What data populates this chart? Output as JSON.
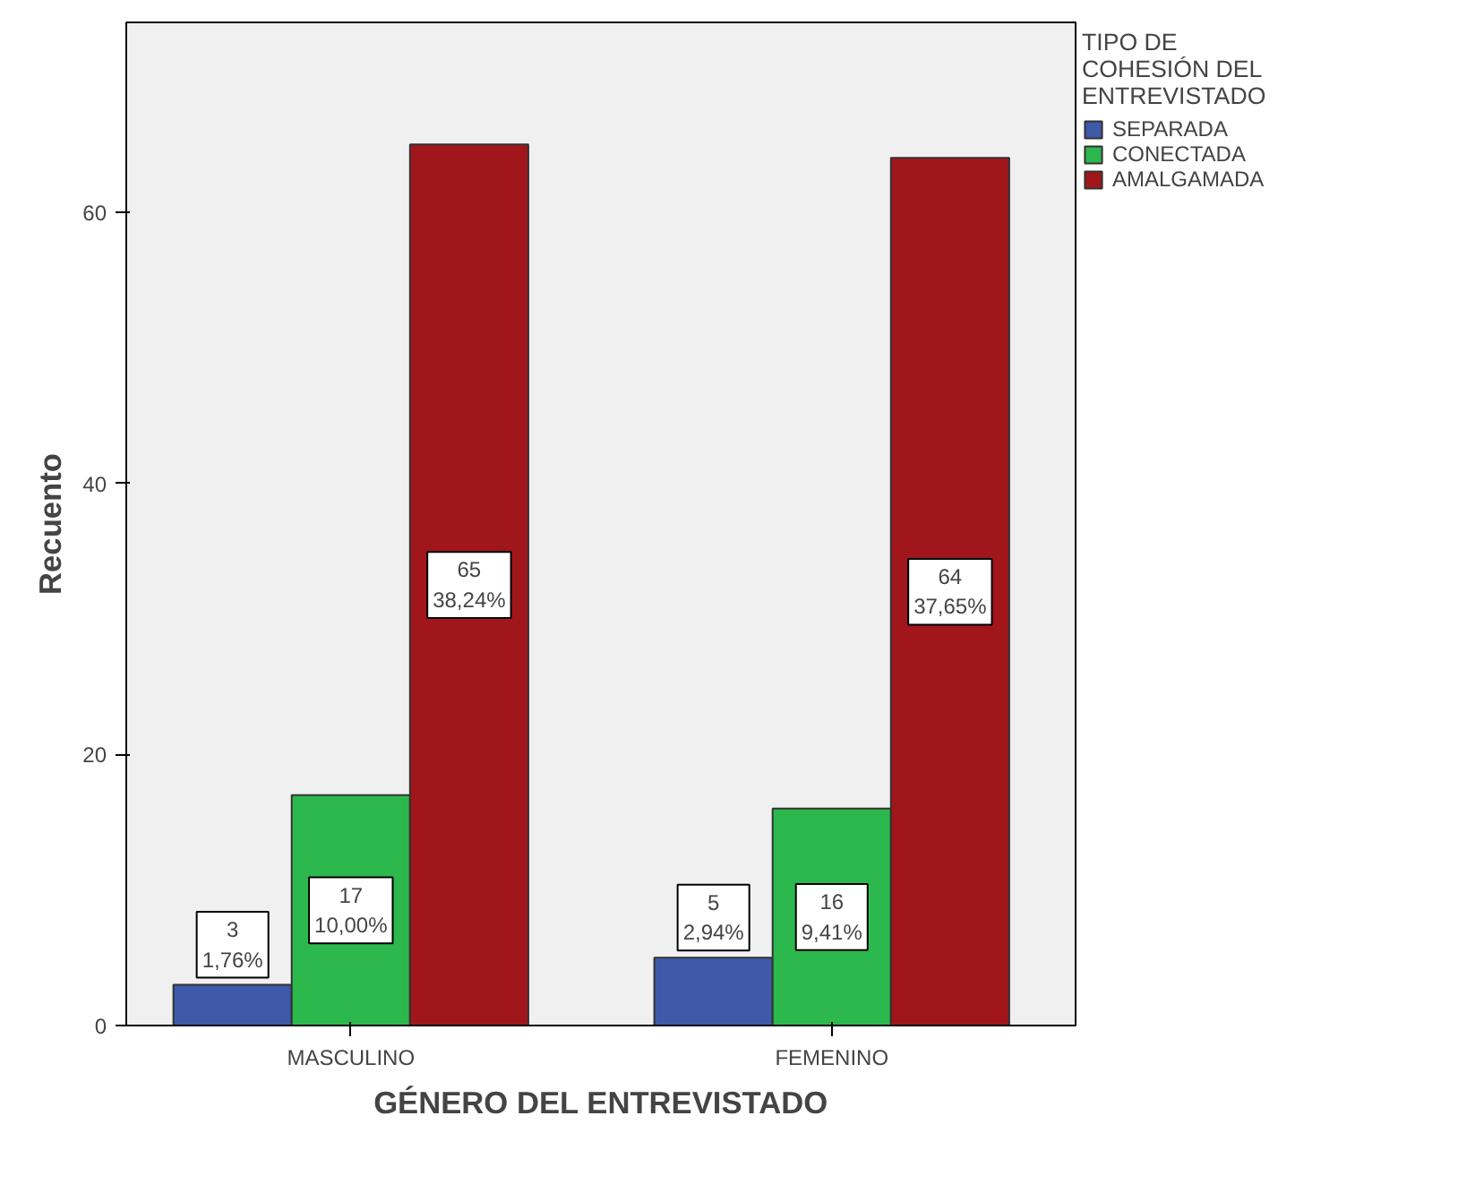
{
  "chart_data": {
    "type": "bar",
    "xlabel": "GÉNERO DEL ENTREVISTADO",
    "ylabel": "Recuento",
    "legend_title": "TIPO DE COHESIÓN DEL ENTREVISTADO",
    "categories": [
      "MASCULINO",
      "FEMENINO"
    ],
    "series": [
      {
        "name": "SEPARADA",
        "color": "#3e5aa8",
        "values": [
          3,
          5
        ],
        "value_labels": [
          "3\n1,76%",
          "5\n2,94%"
        ]
      },
      {
        "name": "CONECTADA",
        "color": "#2db84d",
        "values": [
          17,
          16
        ],
        "value_labels": [
          "17\n10,00%",
          "16\n9,41%"
        ]
      },
      {
        "name": "AMALGAMADA",
        "color": "#a0161b",
        "values": [
          65,
          64
        ],
        "value_labels": [
          "65\n38,24%",
          "64\n37,65%"
        ]
      }
    ],
    "ylim": [
      0,
      74
    ],
    "yticks": [
      0,
      20,
      40,
      60
    ],
    "grid": false,
    "legend": "top right"
  }
}
